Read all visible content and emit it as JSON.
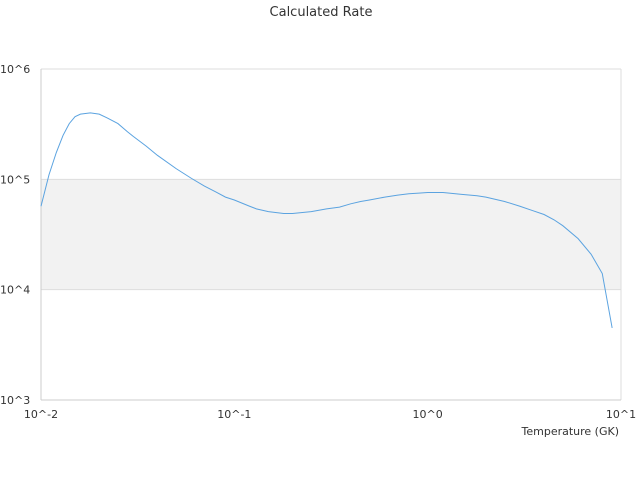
{
  "chart_data": {
    "type": "line",
    "title": "Calculated Rate",
    "xlabel": "Temperature (GK)",
    "ylabel": "",
    "x_scale": "log",
    "y_scale": "log",
    "xlim": [
      0.01,
      10
    ],
    "ylim": [
      1000,
      1000000
    ],
    "x_ticks": [
      "10^-2",
      "10^-1",
      "10^0",
      "10^1"
    ],
    "y_ticks": [
      "10^3",
      "10^4",
      "10^5",
      "10^6"
    ],
    "band": {
      "from": 10000,
      "to": 100000,
      "color": "#f2f2f2"
    },
    "grid": true,
    "legend": "none",
    "series": [
      {
        "color": "#5ba3e0",
        "x": [
          0.01,
          0.011,
          0.012,
          0.013,
          0.014,
          0.015,
          0.016,
          0.018,
          0.02,
          0.022,
          0.025,
          0.028,
          0.03,
          0.035,
          0.04,
          0.05,
          0.06,
          0.07,
          0.08,
          0.09,
          0.1,
          0.12,
          0.13,
          0.15,
          0.18,
          0.2,
          0.25,
          0.3,
          0.35,
          0.4,
          0.45,
          0.5,
          0.6,
          0.7,
          0.8,
          0.9,
          1.0,
          1.2,
          1.5,
          1.8,
          2.0,
          2.5,
          3.0,
          3.5,
          4.0,
          4.5,
          5.0,
          6.0,
          7.0,
          8.0,
          9.0
        ],
        "y": [
          57000,
          110000,
          175000,
          250000,
          320000,
          370000,
          390000,
          400000,
          390000,
          360000,
          320000,
          270000,
          245000,
          200000,
          165000,
          125000,
          102000,
          87000,
          77000,
          69000,
          65000,
          57000,
          54000,
          51000,
          49000,
          49000,
          51000,
          54000,
          56000,
          60000,
          63000,
          65000,
          69000,
          72000,
          74000,
          75000,
          76000,
          76000,
          73000,
          71000,
          69000,
          63000,
          57000,
          52000,
          48000,
          43000,
          38000,
          29000,
          21000,
          14000,
          4500
        ]
      }
    ]
  }
}
